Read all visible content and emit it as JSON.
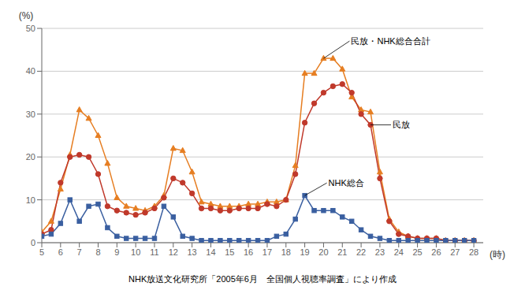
{
  "chart_data": {
    "type": "line",
    "caption": "NHK放送文化研究所「2005年6月　全国個人視聴率調査」により作成",
    "xlabel": "(時)",
    "ylabel": "(%)",
    "xlim": [
      5,
      28.5
    ],
    "xticks": [
      5,
      6,
      7,
      8,
      9,
      10,
      11,
      12,
      13,
      14,
      15,
      16,
      17,
      18,
      19,
      20,
      21,
      22,
      23,
      24,
      25,
      26,
      27,
      28
    ],
    "ylim": [
      0,
      50
    ],
    "yticks": [
      0,
      10,
      20,
      30,
      40,
      50
    ],
    "grid": true,
    "x": [
      5.0,
      5.5,
      6.0,
      6.5,
      7.0,
      7.5,
      8.0,
      8.5,
      9.0,
      9.5,
      10.0,
      10.5,
      11.0,
      11.5,
      12.0,
      12.5,
      13.0,
      13.5,
      14.0,
      14.5,
      15.0,
      15.5,
      16.0,
      16.5,
      17.0,
      17.5,
      18.0,
      18.5,
      19.0,
      19.5,
      20.0,
      20.5,
      21.0,
      21.5,
      22.0,
      22.5,
      23.0,
      23.5,
      24.0,
      24.5,
      25.0,
      25.5,
      26.0,
      26.5,
      27.0,
      27.5,
      28.0
    ],
    "series": [
      {
        "name": "民放・NHK総合合計",
        "color": "#e67e22",
        "marker": "triangle",
        "values": [
          2.5,
          5.0,
          12.5,
          20.5,
          31.0,
          29.0,
          25.0,
          18.5,
          10.5,
          8.5,
          8.0,
          7.5,
          8.5,
          11.0,
          22.0,
          21.5,
          16.5,
          9.5,
          9.0,
          8.5,
          8.5,
          8.5,
          9.0,
          9.0,
          9.5,
          9.5,
          10.0,
          18.0,
          39.5,
          39.5,
          43.0,
          43.0,
          40.5,
          34.0,
          31.0,
          30.5,
          16.5,
          5.5,
          2.5,
          1.5,
          1.0,
          1.0,
          1.0,
          0.5,
          0.5,
          0.5,
          0.5
        ]
      },
      {
        "name": "民放",
        "color": "#c0392b",
        "marker": "circle",
        "values": [
          2.0,
          3.0,
          14.0,
          20.0,
          20.5,
          20.0,
          16.0,
          8.5,
          7.5,
          7.0,
          6.5,
          7.0,
          8.0,
          10.5,
          15.0,
          14.0,
          11.5,
          8.0,
          8.0,
          7.5,
          7.5,
          8.0,
          8.0,
          8.0,
          9.0,
          8.5,
          10.0,
          16.0,
          28.0,
          32.5,
          35.0,
          36.5,
          37.0,
          35.0,
          30.0,
          27.5,
          15.0,
          5.0,
          2.0,
          1.5,
          1.0,
          1.0,
          1.0,
          0.5,
          0.5,
          0.5,
          0.5
        ]
      },
      {
        "name": "NHK総合",
        "color": "#3a5fa0",
        "marker": "square",
        "values": [
          1.5,
          2.0,
          4.5,
          10.0,
          5.0,
          8.5,
          9.0,
          3.5,
          1.5,
          1.0,
          1.0,
          1.0,
          1.0,
          8.5,
          6.0,
          1.5,
          1.0,
          0.5,
          0.5,
          0.5,
          0.5,
          0.5,
          0.5,
          0.5,
          0.5,
          1.5,
          2.0,
          5.5,
          11.0,
          7.5,
          7.5,
          7.5,
          6.0,
          5.0,
          3.0,
          1.5,
          1.0,
          0.5,
          0.5,
          0.5,
          0.5,
          0.5,
          0.5,
          0.5,
          0.5,
          0.5,
          0.5
        ]
      }
    ]
  }
}
